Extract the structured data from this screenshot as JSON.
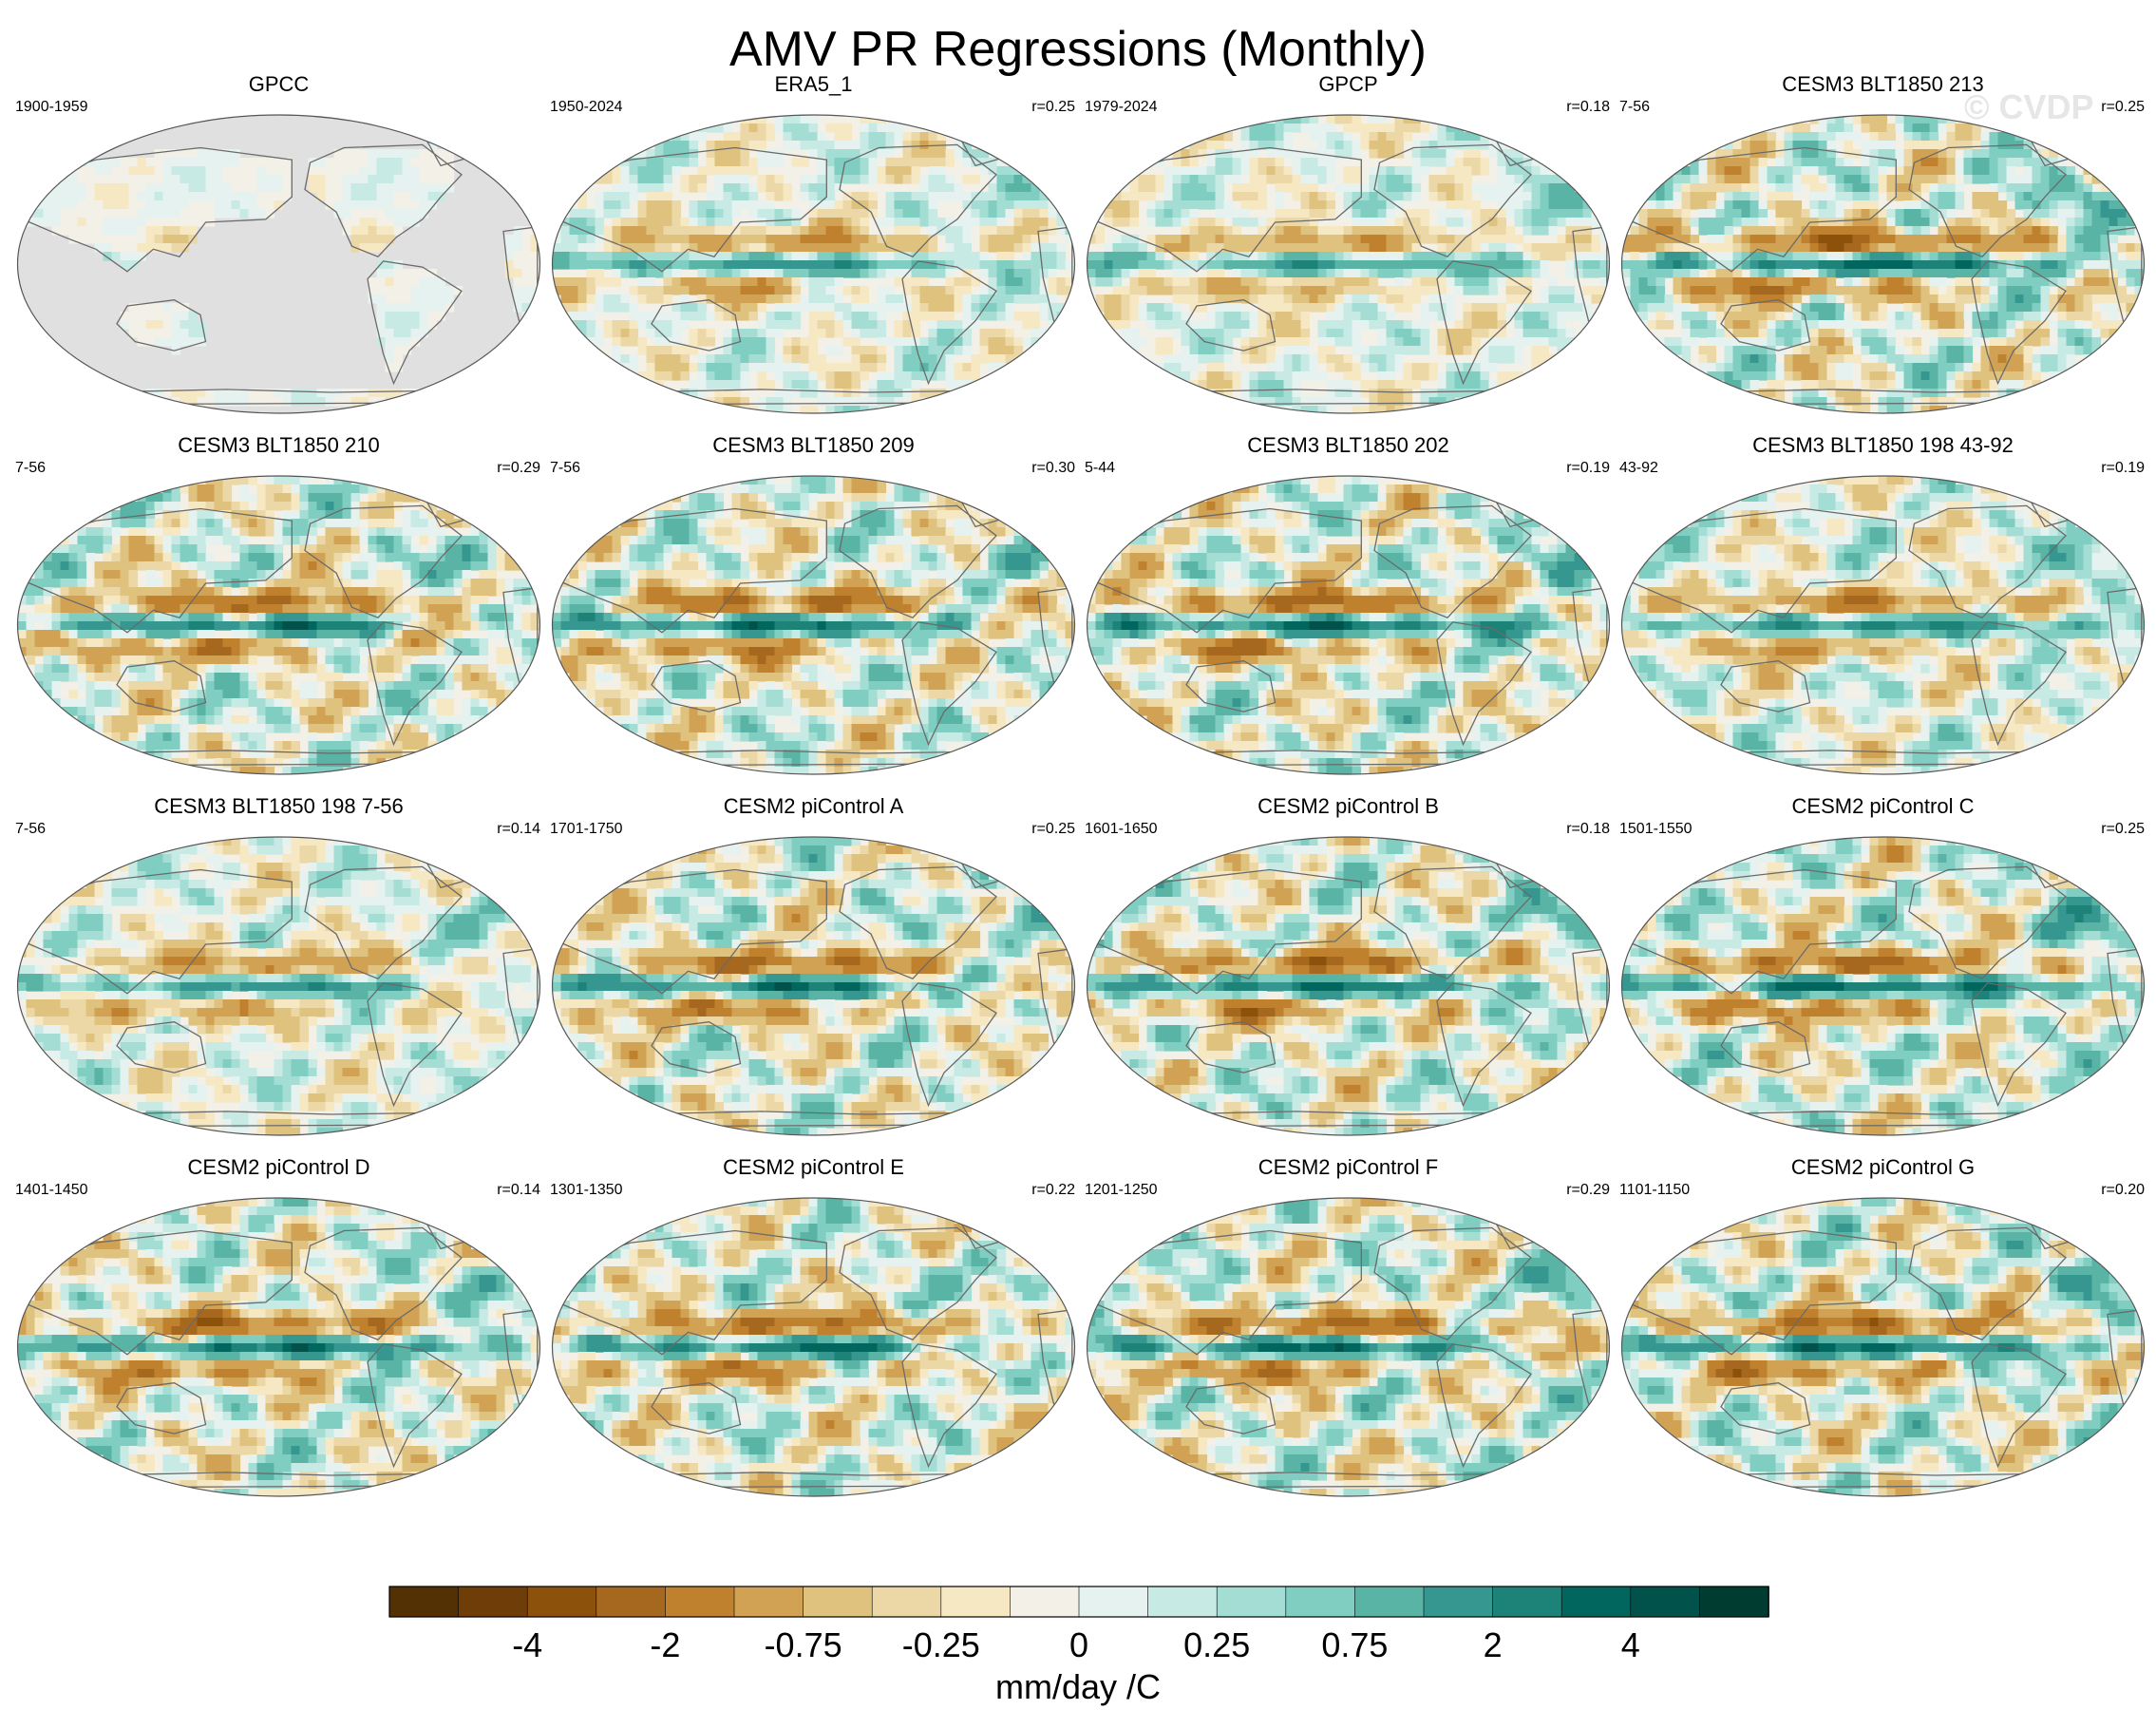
{
  "title": "AMV PR Regressions (Monthly)",
  "watermark": "© CVDP",
  "panels": [
    {
      "title": "GPCC",
      "period": "1900-1959",
      "r": "",
      "pattern": 0,
      "amp": 0.22,
      "land_only": true
    },
    {
      "title": "ERA5_1",
      "period": "1950-2024",
      "r": "r=0.25",
      "pattern": 1,
      "amp": 0.6,
      "land_only": false
    },
    {
      "title": "GPCP",
      "period": "1979-2024",
      "r": "r=0.18",
      "pattern": 2,
      "amp": 0.55,
      "land_only": false
    },
    {
      "title": "CESM3 BLT1850 213",
      "period": "7-56",
      "r": "r=0.25",
      "pattern": 3,
      "amp": 1.0,
      "land_only": false
    },
    {
      "title": "CESM3 BLT1850 210",
      "period": "7-56",
      "r": "r=0.29",
      "pattern": 4,
      "amp": 0.95,
      "land_only": false
    },
    {
      "title": "CESM3 BLT1850 209",
      "period": "7-56",
      "r": "r=0.30",
      "pattern": 5,
      "amp": 0.95,
      "land_only": false
    },
    {
      "title": "CESM3 BLT1850 202",
      "period": "5-44",
      "r": "r=0.19",
      "pattern": 6,
      "amp": 1.0,
      "land_only": false
    },
    {
      "title": "CESM3 BLT1850 198 43-92",
      "period": "43-92",
      "r": "r=0.19",
      "pattern": 7,
      "amp": 0.75,
      "land_only": false
    },
    {
      "title": "CESM3 BLT1850 198 7-56",
      "period": "7-56",
      "r": "r=0.14",
      "pattern": 8,
      "amp": 0.65,
      "land_only": false
    },
    {
      "title": "CESM2 piControl A",
      "period": "1701-1750",
      "r": "r=0.25",
      "pattern": 9,
      "amp": 0.95,
      "land_only": false
    },
    {
      "title": "CESM2 piControl B",
      "period": "1601-1650",
      "r": "r=0.18",
      "pattern": 10,
      "amp": 0.95,
      "land_only": false
    },
    {
      "title": "CESM2 piControl C",
      "period": "1501-1550",
      "r": "r=0.25",
      "pattern": 11,
      "amp": 1.0,
      "land_only": false
    },
    {
      "title": "CESM2 piControl D",
      "period": "1401-1450",
      "r": "r=0.14",
      "pattern": 12,
      "amp": 0.95,
      "land_only": false
    },
    {
      "title": "CESM2 piControl E",
      "period": "1301-1350",
      "r": "r=0.22",
      "pattern": 13,
      "amp": 0.95,
      "land_only": false
    },
    {
      "title": "CESM2 piControl F",
      "period": "1201-1250",
      "r": "r=0.29",
      "pattern": 14,
      "amp": 1.0,
      "land_only": false
    },
    {
      "title": "CESM2 piControl G",
      "period": "1101-1150",
      "r": "r=0.20",
      "pattern": 15,
      "amp": 1.0,
      "land_only": false
    }
  ],
  "chart_data": {
    "type": "heatmap",
    "title": "AMV PR Regressions (Monthly)",
    "projection": "robinson-like global maps, 4x4 grid",
    "colorbar": {
      "label": "mm/day /C",
      "colors": [
        "#543005",
        "#6e3d08",
        "#8c510a",
        "#a6681f",
        "#bf812d",
        "#d2a254",
        "#dfc27d",
        "#ecd8a6",
        "#f6e8c3",
        "#f3f0e8",
        "#e5f2ef",
        "#c7eae5",
        "#a4ddd4",
        "#80cdc1",
        "#5ab4a6",
        "#35978f",
        "#1d8278",
        "#01665e",
        "#00524a",
        "#003c30"
      ],
      "tick_labels": [
        "-4",
        "-2",
        "-0.75",
        "-0.25",
        "0",
        "0.25",
        "0.75",
        "2",
        "4"
      ],
      "tick_boundaries": [
        2,
        4,
        6,
        8,
        10,
        12,
        14,
        16,
        18
      ]
    }
  }
}
